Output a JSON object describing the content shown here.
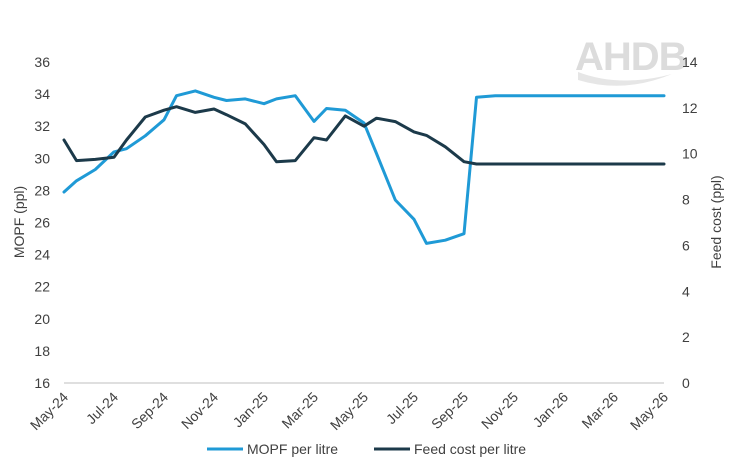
{
  "logo": {
    "text": "AHDB"
  },
  "chart_data": {
    "type": "line",
    "title": "",
    "xlabel": "",
    "ylabel": "MOPF (ppl)",
    "y2label": "Feed cost (ppl)",
    "ylim": [
      16,
      36
    ],
    "y2lim": [
      0,
      14
    ],
    "yticks": [
      16,
      18,
      20,
      22,
      24,
      26,
      28,
      30,
      32,
      34,
      36
    ],
    "y2ticks": [
      0,
      2,
      4,
      6,
      8,
      10,
      12,
      14
    ],
    "grid": false,
    "legend": "bottom",
    "categories": [
      "May-24",
      "Jun-24",
      "Jul-24",
      "Aug-24",
      "Sep-24",
      "Oct-24",
      "Nov-24",
      "Dec-24",
      "Jan-25",
      "Feb-25",
      "Mar-25",
      "Apr-25",
      "May-25",
      "Jun-25",
      "Jul-25",
      "Aug-25",
      "Sep-25",
      "Oct-25",
      "Nov-25",
      "Dec-25",
      "Jan-26",
      "Feb-26",
      "Mar-26",
      "Apr-26",
      "May-26"
    ],
    "tick_labels": [
      "May-24",
      "Jul-24",
      "Sep-24",
      "Nov-24",
      "Jan-25",
      "Mar-25",
      "May-25",
      "Jul-25",
      "Sep-25",
      "Nov-25",
      "Jan-26",
      "Mar-26",
      "May-26"
    ],
    "x_positions": [
      0,
      0.5,
      1.25,
      2,
      2.5,
      3.25,
      4,
      4.5,
      5.25,
      6,
      6.5,
      7.25,
      8,
      8.5,
      9.25,
      10,
      10.5,
      11.25,
      12,
      12.5,
      13.25,
      14,
      14.5,
      15.25,
      16,
      16.5,
      17.25,
      18,
      18.5,
      19.25,
      20,
      20.5,
      21.25,
      22,
      22.5,
      23.25,
      24
    ],
    "series": [
      {
        "name": "MOPF per litre",
        "axis": "left",
        "color": "#1f9ad6",
        "x": [
          0,
          0.5,
          1.25,
          2,
          2.5,
          3.25,
          4,
          4.5,
          5.25,
          6,
          6.5,
          7.25,
          8,
          8.5,
          9.25,
          10,
          10.5,
          11.25,
          12,
          12.5,
          13.25,
          14,
          14.5,
          15.25,
          16,
          16.5,
          17.25,
          18,
          18.5,
          19.25,
          20,
          20.5,
          21.25,
          22,
          22.5,
          23.25,
          24
        ],
        "values": [
          27.9,
          28.6,
          29.3,
          30.4,
          30.6,
          31.4,
          32.4,
          33.9,
          34.2,
          33.8,
          33.6,
          33.7,
          33.4,
          33.7,
          33.9,
          32.3,
          33.1,
          33.0,
          32.2,
          30.3,
          27.4,
          26.2,
          24.7,
          24.9,
          25.3,
          33.8,
          33.9,
          33.9,
          33.9,
          33.9,
          33.9,
          33.9,
          33.9,
          33.9,
          33.9,
          33.9,
          33.9
        ]
      },
      {
        "name": "Feed cost per litre",
        "axis": "right",
        "color": "#1c3a4a",
        "x": [
          0,
          0.5,
          1.25,
          2,
          2.5,
          3.25,
          4,
          4.5,
          5.25,
          6,
          6.5,
          7.25,
          8,
          8.5,
          9.25,
          10,
          10.5,
          11.25,
          12,
          12.5,
          13.25,
          14,
          14.5,
          15.25,
          16,
          16.5,
          17.25,
          18,
          18.5,
          19.25,
          20,
          20.5,
          21.25,
          22,
          22.5,
          23.25,
          24
        ],
        "values": [
          10.6,
          9.7,
          9.75,
          9.85,
          10.6,
          11.6,
          11.9,
          12.05,
          11.8,
          11.95,
          11.7,
          11.3,
          10.4,
          9.65,
          9.7,
          10.7,
          10.6,
          11.65,
          11.2,
          11.55,
          11.4,
          10.95,
          10.8,
          10.3,
          9.65,
          9.55,
          9.55,
          9.55,
          9.55,
          9.55,
          9.55,
          9.55,
          9.55,
          9.55,
          9.55,
          9.55,
          9.55
        ]
      }
    ]
  }
}
